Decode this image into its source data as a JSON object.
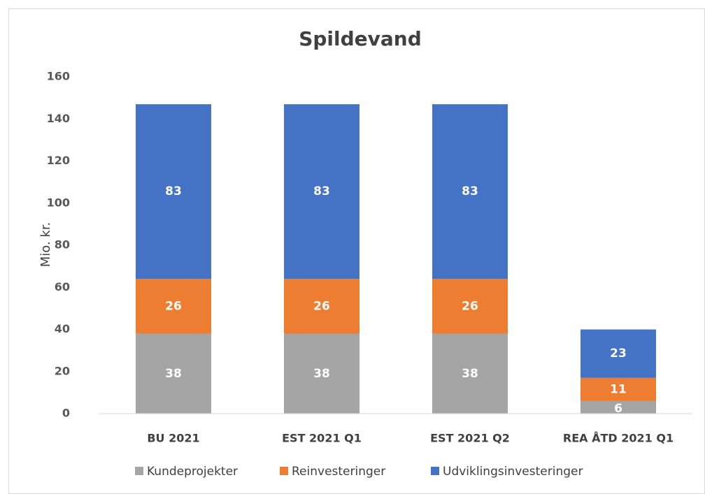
{
  "chart_data": {
    "type": "stacked_bar",
    "title": "Spildevand",
    "y_label": "Mio. kr.",
    "categories": [
      "BU 2021",
      "EST 2021 Q1",
      "EST 2021 Q2",
      "REA ÅTD 2021 Q1"
    ],
    "series": [
      {
        "name": "Kundeprojekter",
        "color": "#a5a5a5",
        "values": [
          38,
          38,
          38,
          6
        ]
      },
      {
        "name": "Reinvesteringer",
        "color": "#ed7d31",
        "values": [
          26,
          26,
          26,
          11
        ]
      },
      {
        "name": "Udviklingsinvesteringer",
        "color": "#4472c4",
        "values": [
          83,
          83,
          83,
          23
        ]
      }
    ],
    "ylim": [
      0,
      160
    ],
    "yticks": [
      0,
      20,
      40,
      60,
      80,
      100,
      120,
      140,
      160
    ],
    "grid": false,
    "legend": "bottom"
  }
}
